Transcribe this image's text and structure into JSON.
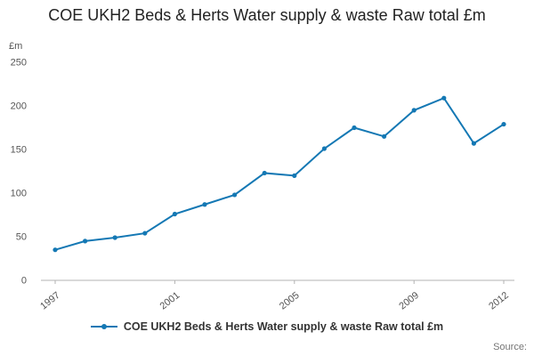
{
  "chart_data": {
    "type": "line",
    "title": "COE UKH2 Beds & Herts Water supply & waste Raw total £m",
    "ylabel": "£m",
    "xlabel": "",
    "x": [
      1997,
      1998,
      1999,
      2000,
      2001,
      2002,
      2003,
      2004,
      2005,
      2006,
      2007,
      2008,
      2009,
      2010,
      2011,
      2012
    ],
    "values": [
      35,
      45,
      49,
      54,
      76,
      87,
      98,
      123,
      120,
      151,
      175,
      165,
      195,
      209,
      157,
      179
    ],
    "xticks": [
      1997,
      2001,
      2005,
      2009,
      2012
    ],
    "yticks": [
      0,
      50,
      100,
      150,
      200,
      250
    ],
    "ylim": [
      0,
      250
    ],
    "grid": false,
    "color": "#1478b4",
    "legend": "COE UKH2 Beds & Herts Water supply & waste Raw total £m",
    "legend_position": "bottom"
  },
  "footer": {
    "source_label": "Source:"
  }
}
